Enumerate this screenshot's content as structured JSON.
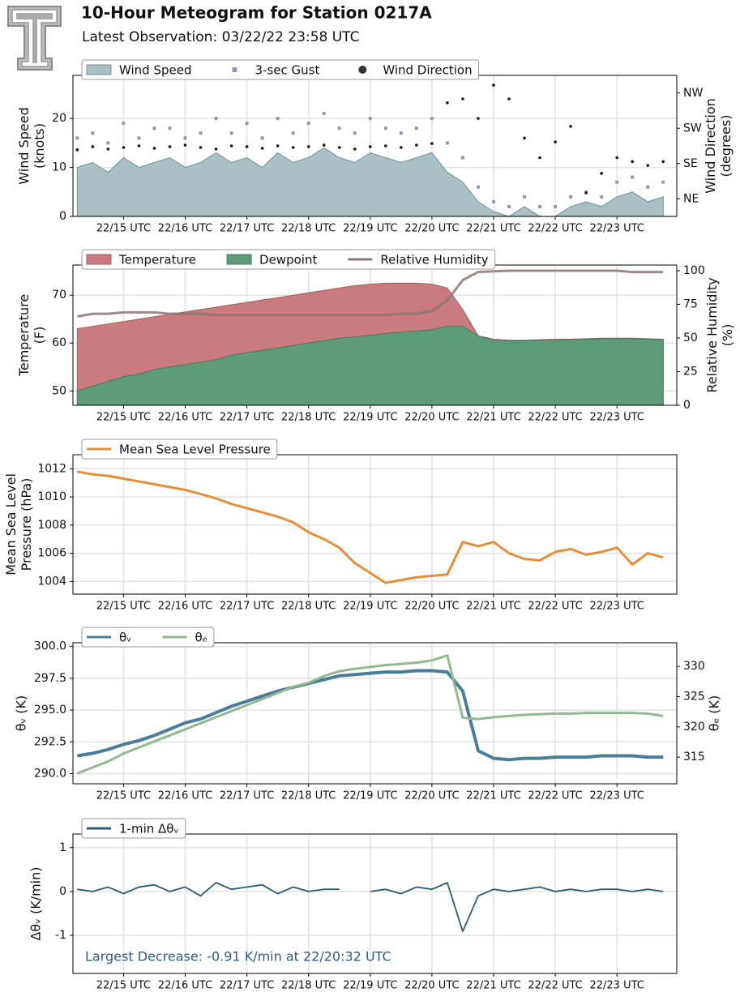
{
  "header": {
    "title": "10-Hour Meteogram for Station 0217A",
    "subtitle": "Latest Observation: 03/22/22 23:58 UTC"
  },
  "chart_data": [
    {
      "type": "line",
      "xlim": [
        14.18,
        23.97
      ],
      "xticks": [
        {
          "value": 15,
          "label": "22/15 UTC"
        },
        {
          "value": 16,
          "label": "22/16 UTC"
        },
        {
          "value": 17,
          "label": "22/17 UTC"
        },
        {
          "value": 18,
          "label": "22/18 UTC"
        },
        {
          "value": 19,
          "label": "22/19 UTC"
        },
        {
          "value": 20,
          "label": "22/20 UTC"
        },
        {
          "value": 21,
          "label": "22/21 UTC"
        },
        {
          "value": 22,
          "label": "22/22 UTC"
        },
        {
          "value": 23,
          "label": "22/23 UTC"
        }
      ],
      "ylim": [
        0,
        28.8
      ],
      "yticks": [
        0,
        10,
        20
      ],
      "y2lim": [
        0,
        360
      ],
      "y2ticks": [
        {
          "value": 45,
          "label": "NE"
        },
        {
          "value": 135,
          "label": "SE"
        },
        {
          "value": 225,
          "label": "SW"
        },
        {
          "value": 315,
          "label": "NW"
        }
      ],
      "ylabel": [
        "Wind Speed",
        "(knots)"
      ],
      "y2label": [
        "Wind Direction",
        "(degrees)"
      ],
      "grid": true,
      "legend": "top left",
      "x": [
        14.25,
        14.5,
        14.75,
        15,
        15.25,
        15.5,
        15.75,
        16,
        16.25,
        16.5,
        16.75,
        17,
        17.25,
        17.5,
        17.75,
        18,
        18.25,
        18.5,
        18.75,
        19,
        19.25,
        19.5,
        19.75,
        20,
        20.25,
        20.5,
        20.75,
        21,
        21.25,
        21.5,
        21.75,
        22,
        22.25,
        22.5,
        22.75,
        23,
        23.25,
        23.5,
        23.75
      ],
      "series": [
        {
          "name": "Wind Speed",
          "type": "area",
          "color": "#a9c0c5",
          "edge": "#6f9298",
          "values": [
            10,
            11,
            9,
            12,
            10,
            11,
            12,
            10,
            11,
            13,
            11,
            12,
            10,
            13,
            11,
            12,
            14,
            12,
            11,
            13,
            12,
            11,
            12,
            13,
            9,
            7,
            3,
            1,
            0,
            2,
            0,
            0,
            2,
            3,
            2,
            4,
            5,
            3,
            4
          ]
        },
        {
          "name": "3-sec Gust",
          "type": "scatter",
          "marker": "square",
          "color": "#9a93b3",
          "values": [
            16,
            17,
            15,
            19,
            16,
            18,
            18,
            16,
            17,
            20,
            17,
            19,
            16,
            20,
            17,
            19,
            21,
            18,
            17,
            20,
            18,
            17,
            18,
            20,
            15,
            12,
            6,
            3,
            2,
            4,
            2,
            2,
            4,
            5,
            4,
            7,
            8,
            6,
            7
          ]
        },
        {
          "name": "Wind Direction",
          "type": "scatter",
          "marker": "circle",
          "color": "#1a1a1a",
          "axis": "y2",
          "values": [
            170,
            178,
            172,
            176,
            180,
            174,
            178,
            182,
            176,
            172,
            180,
            178,
            174,
            180,
            176,
            178,
            182,
            176,
            172,
            178,
            180,
            176,
            182,
            186,
            290,
            300,
            250,
            335,
            300,
            200,
            150,
            190,
            230,
            60,
            110,
            150,
            140,
            130,
            140
          ]
        }
      ]
    },
    {
      "type": "line",
      "xlim": [
        14.18,
        23.97
      ],
      "xticks": [
        {
          "value": 15,
          "label": "22/15 UTC"
        },
        {
          "value": 16,
          "label": "22/16 UTC"
        },
        {
          "value": 17,
          "label": "22/17 UTC"
        },
        {
          "value": 18,
          "label": "22/18 UTC"
        },
        {
          "value": 19,
          "label": "22/19 UTC"
        },
        {
          "value": 20,
          "label": "22/20 UTC"
        },
        {
          "value": 21,
          "label": "22/21 UTC"
        },
        {
          "value": 22,
          "label": "22/22 UTC"
        },
        {
          "value": 23,
          "label": "22/23 UTC"
        }
      ],
      "ylim": [
        47,
        76.3
      ],
      "yticks": [
        50,
        60,
        70
      ],
      "y2lim": [
        0,
        104.2
      ],
      "y2ticks": [
        0,
        25,
        50,
        75,
        100
      ],
      "ylabel": [
        "Temperature",
        "(F)"
      ],
      "y2label": [
        "Relative Humidity",
        "(%)"
      ],
      "grid": true,
      "legend": "top left",
      "x": [
        14.25,
        14.5,
        14.75,
        15,
        15.25,
        15.5,
        15.75,
        16,
        16.25,
        16.5,
        16.75,
        17,
        17.25,
        17.5,
        17.75,
        18,
        18.25,
        18.5,
        18.75,
        19,
        19.25,
        19.5,
        19.75,
        20,
        20.25,
        20.5,
        20.75,
        21,
        21.25,
        21.5,
        21.75,
        22,
        22.25,
        22.5,
        22.75,
        23,
        23.25,
        23.5,
        23.75
      ],
      "series": [
        {
          "name": "Temperature",
          "type": "area",
          "color": "#c97b7f",
          "edge": "#a35c60",
          "values": [
            63,
            63.5,
            64,
            64.5,
            65,
            65.5,
            66,
            66.5,
            67,
            67.5,
            68,
            68.5,
            69,
            69.5,
            70,
            70.5,
            71,
            71.5,
            72,
            72.3,
            72.5,
            72.5,
            72.5,
            72.3,
            71.5,
            67,
            61.5,
            60.8,
            60.6,
            60.6,
            60.7,
            60.8,
            60.8,
            60.9,
            61,
            61,
            61,
            60.9,
            60.8
          ]
        },
        {
          "name": "Dewpoint",
          "type": "area",
          "color": "#5e9c79",
          "edge": "#477a5d",
          "values": [
            50,
            51,
            52,
            53,
            53.5,
            54.5,
            55,
            55.5,
            56,
            56.5,
            57.5,
            58,
            58.5,
            59,
            59.5,
            60,
            60.5,
            61,
            61.3,
            61.6,
            62,
            62.3,
            62.5,
            62.8,
            63.5,
            63.5,
            61.5,
            60.6,
            60.5,
            60.5,
            60.6,
            60.7,
            60.7,
            60.8,
            60.9,
            60.9,
            60.9,
            60.8,
            60.7
          ]
        },
        {
          "name": "Relative Humidity",
          "type": "line",
          "color": "#8e7577",
          "axis": "y2",
          "values": [
            66,
            68,
            68,
            69,
            69,
            69,
            68,
            68,
            68,
            67,
            67,
            67,
            67,
            67,
            67,
            67,
            67,
            67,
            67,
            67,
            67,
            68,
            68,
            70,
            78,
            93,
            99,
            99.5,
            100,
            100,
            100,
            100,
            100,
            100,
            100,
            100,
            99,
            99,
            99
          ]
        }
      ]
    },
    {
      "type": "line",
      "xlim": [
        14.18,
        23.97
      ],
      "xticks": [
        {
          "value": 15,
          "label": "22/15 UTC"
        },
        {
          "value": 16,
          "label": "22/16 UTC"
        },
        {
          "value": 17,
          "label": "22/17 UTC"
        },
        {
          "value": 18,
          "label": "22/18 UTC"
        },
        {
          "value": 19,
          "label": "22/19 UTC"
        },
        {
          "value": 20,
          "label": "22/20 UTC"
        },
        {
          "value": 21,
          "label": "22/21 UTC"
        },
        {
          "value": 22,
          "label": "22/22 UTC"
        },
        {
          "value": 23,
          "label": "22/23 UTC"
        }
      ],
      "ylim": [
        1003.1,
        1013
      ],
      "yticks": [
        1004,
        1006,
        1008,
        1010,
        1012
      ],
      "ylabel": [
        "Mean Sea Level",
        "Pressure (hPa)"
      ],
      "grid": true,
      "legend": "top left",
      "x": [
        14.25,
        14.5,
        14.75,
        15,
        15.25,
        15.5,
        15.75,
        16,
        16.25,
        16.5,
        16.75,
        17,
        17.25,
        17.5,
        17.75,
        18,
        18.25,
        18.5,
        18.75,
        19,
        19.25,
        19.5,
        19.75,
        20,
        20.25,
        20.5,
        20.75,
        21,
        21.25,
        21.5,
        21.75,
        22,
        22.25,
        22.5,
        22.75,
        23,
        23.25,
        23.5,
        23.75
      ],
      "series": [
        {
          "name": "Mean Sea Level Pressure",
          "type": "line",
          "color": "#e58f3a",
          "values": [
            1011.8,
            1011.6,
            1011.5,
            1011.3,
            1011.1,
            1010.9,
            1010.7,
            1010.5,
            1010.2,
            1009.9,
            1009.5,
            1009.2,
            1008.9,
            1008.6,
            1008.2,
            1007.5,
            1007,
            1006.4,
            1005.3,
            1004.6,
            1003.9,
            1004.1,
            1004.3,
            1004.4,
            1004.5,
            1006.8,
            1006.5,
            1006.8,
            1006,
            1005.6,
            1005.5,
            1006.1,
            1006.3,
            1005.9,
            1006.1,
            1006.4,
            1005.2,
            1006,
            1005.7
          ]
        }
      ]
    },
    {
      "type": "line",
      "xlim": [
        14.18,
        23.97
      ],
      "xticks": [
        {
          "value": 15,
          "label": "22/15 UTC"
        },
        {
          "value": 16,
          "label": "22/16 UTC"
        },
        {
          "value": 17,
          "label": "22/17 UTC"
        },
        {
          "value": 18,
          "label": "22/18 UTC"
        },
        {
          "value": 19,
          "label": "22/19 UTC"
        },
        {
          "value": 20,
          "label": "22/20 UTC"
        },
        {
          "value": 21,
          "label": "22/21 UTC"
        },
        {
          "value": 22,
          "label": "22/22 UTC"
        },
        {
          "value": 23,
          "label": "22/23 UTC"
        }
      ],
      "ylim": [
        289.2,
        300.3
      ],
      "yticks": [
        {
          "value": 290,
          "label": "290.0"
        },
        292.5,
        {
          "value": 295,
          "label": "295.0"
        },
        297.5,
        {
          "value": 300,
          "label": "300.0"
        }
      ],
      "y2lim": [
        310.6,
        333.9
      ],
      "y2ticks": [
        315,
        320,
        325,
        330
      ],
      "ylabel": [
        "θᵥ (K)"
      ],
      "y2label": [
        "θₑ (K)"
      ],
      "grid": true,
      "legend": "top left",
      "x": [
        14.25,
        14.5,
        14.75,
        15,
        15.25,
        15.5,
        15.75,
        16,
        16.25,
        16.5,
        16.75,
        17,
        17.25,
        17.5,
        17.75,
        18,
        18.25,
        18.5,
        18.75,
        19,
        19.25,
        19.5,
        19.75,
        20,
        20.25,
        20.5,
        20.75,
        21,
        21.25,
        21.5,
        21.75,
        22,
        22.25,
        22.5,
        22.75,
        23,
        23.25,
        23.5,
        23.75
      ],
      "series": [
        {
          "name": "θᵥ",
          "type": "line",
          "color": "#4a7d96",
          "values": [
            291.4,
            291.6,
            291.9,
            292.3,
            292.6,
            293,
            293.5,
            294,
            294.3,
            294.8,
            295.3,
            295.7,
            296.1,
            296.5,
            296.8,
            297.1,
            297.4,
            297.7,
            297.8,
            297.9,
            298,
            298,
            298.1,
            298.1,
            298,
            296.5,
            291.8,
            291.2,
            291.1,
            291.2,
            291.2,
            291.3,
            291.3,
            291.3,
            291.4,
            291.4,
            291.4,
            291.3,
            291.3
          ]
        },
        {
          "name": "θₑ",
          "type": "line",
          "color": "#93b990",
          "axis": "y2",
          "values": [
            312.3,
            313.3,
            314.3,
            315.6,
            316.6,
            317.6,
            318.6,
            319.6,
            320.6,
            321.6,
            322.6,
            323.6,
            324.6,
            325.6,
            326.6,
            327.3,
            328.4,
            329.2,
            329.6,
            329.9,
            330.2,
            330.4,
            330.6,
            331,
            331.8,
            321.5,
            321.3,
            321.6,
            321.8,
            322,
            322.1,
            322.2,
            322.2,
            322.3,
            322.3,
            322.3,
            322.3,
            322.2,
            321.8
          ]
        }
      ]
    },
    {
      "type": "line",
      "xlim": [
        14.18,
        23.97
      ],
      "xticks": [
        {
          "value": 15,
          "label": "22/15 UTC"
        },
        {
          "value": 16,
          "label": "22/16 UTC"
        },
        {
          "value": 17,
          "label": "22/17 UTC"
        },
        {
          "value": 18,
          "label": "22/18 UTC"
        },
        {
          "value": 19,
          "label": "22/19 UTC"
        },
        {
          "value": 20,
          "label": "22/20 UTC"
        },
        {
          "value": 21,
          "label": "22/21 UTC"
        },
        {
          "value": 22,
          "label": "22/22 UTC"
        },
        {
          "value": 23,
          "label": "22/23 UTC"
        }
      ],
      "ylim": [
        -1.87,
        1.31
      ],
      "yticks": [
        -1,
        0,
        1
      ],
      "ylabel": [
        "Δθᵥ (K/min)"
      ],
      "grid": true,
      "legend": "top left",
      "annotation": "Largest Decrease: -0.91 K/min at 22/20:32 UTC",
      "x": [
        14.25,
        14.5,
        14.75,
        15,
        15.25,
        15.5,
        15.75,
        16,
        16.25,
        16.5,
        16.75,
        17,
        17.25,
        17.5,
        17.75,
        18,
        18.25,
        18.5,
        18.75,
        19,
        19.25,
        19.5,
        19.75,
        20,
        20.25,
        20.5,
        20.75,
        21,
        21.25,
        21.5,
        21.75,
        22,
        22.25,
        22.5,
        22.75,
        23,
        23.25,
        23.5,
        23.75
      ],
      "series": [
        {
          "name": "1-min Δθᵥ",
          "type": "line",
          "color": "#2d5a70",
          "values": [
            0.05,
            0,
            0.1,
            -0.05,
            0.1,
            0.15,
            0,
            0.1,
            -0.1,
            0.2,
            0.05,
            0.1,
            0.15,
            -0.05,
            0.1,
            0,
            0.05,
            0.05,
            null,
            0,
            0.05,
            -0.05,
            0.1,
            0.05,
            0.2,
            -0.91,
            -0.1,
            0.05,
            0,
            0.05,
            0.1,
            0,
            0.05,
            0,
            0.05,
            0.05,
            0,
            0.05,
            0
          ]
        }
      ]
    }
  ]
}
